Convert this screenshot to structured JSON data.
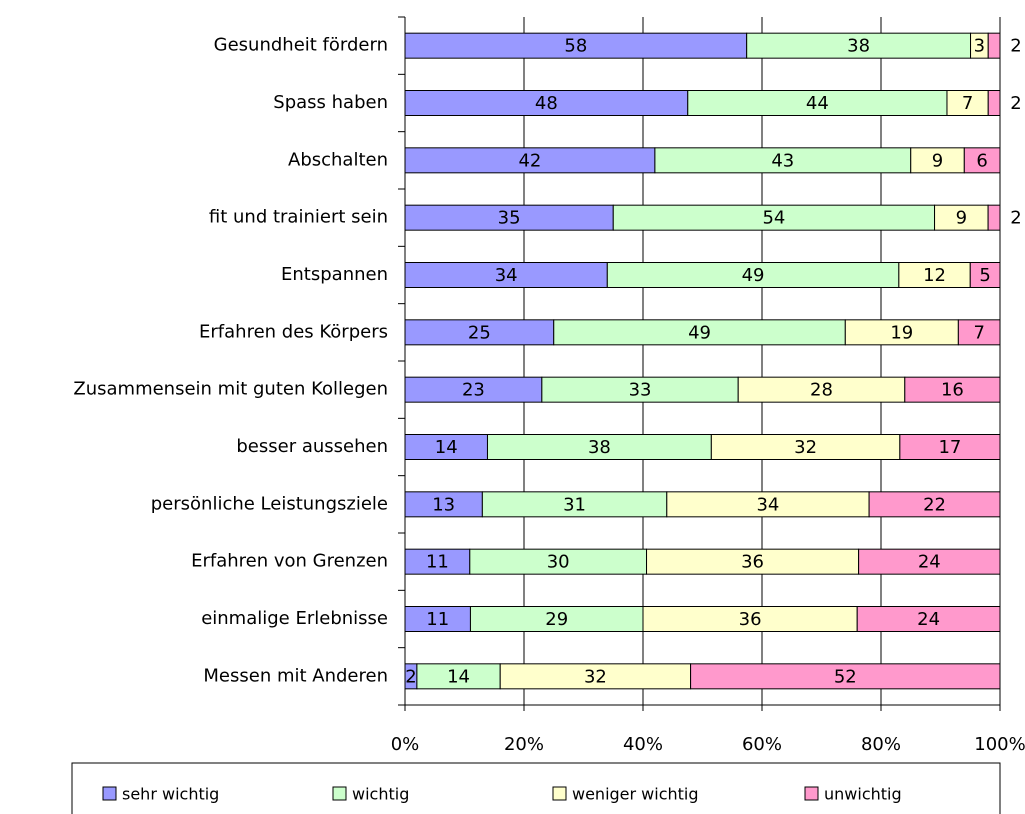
{
  "chart_data": {
    "type": "bar",
    "orientation": "horizontal",
    "stacking": "percent",
    "categories": [
      "Gesundheit fördern",
      "Spass haben",
      "Abschalten",
      "fit und trainiert sein",
      "Entspannen",
      "Erfahren des Körpers",
      "Zusammensein mit guten Kollegen",
      "besser aussehen",
      "persönliche Leistungsziele ",
      "Erfahren von Grenzen",
      "einmalige Erlebnisse",
      "Messen mit Anderen"
    ],
    "series": [
      {
        "name": "sehr wichtig",
        "color": "#9999ff",
        "values": [
          58,
          48,
          42,
          35,
          34,
          25,
          23,
          14,
          13,
          11,
          11,
          2
        ]
      },
      {
        "name": "wichtig",
        "color": "#ccffcc",
        "values": [
          38,
          44,
          43,
          54,
          49,
          49,
          33,
          38,
          31,
          30,
          29,
          14
        ]
      },
      {
        "name": "weniger wichtig",
        "color": "#ffffcc",
        "values": [
          3,
          7,
          9,
          9,
          12,
          19,
          28,
          32,
          34,
          36,
          36,
          32
        ]
      },
      {
        "name": "unwichtig",
        "color": "#ff99cc",
        "values": [
          2,
          2,
          6,
          2,
          5,
          7,
          16,
          17,
          22,
          24,
          24,
          52
        ]
      }
    ],
    "xlim": [
      0,
      100
    ],
    "xticks": [
      {
        "value": 0,
        "label": "0%"
      },
      {
        "value": 20,
        "label": "20%"
      },
      {
        "value": 40,
        "label": "40%"
      },
      {
        "value": 60,
        "label": "60%"
      },
      {
        "value": 80,
        "label": "80%"
      },
      {
        "value": 100,
        "label": "100%"
      }
    ],
    "grid": true,
    "legend": "bottom"
  }
}
